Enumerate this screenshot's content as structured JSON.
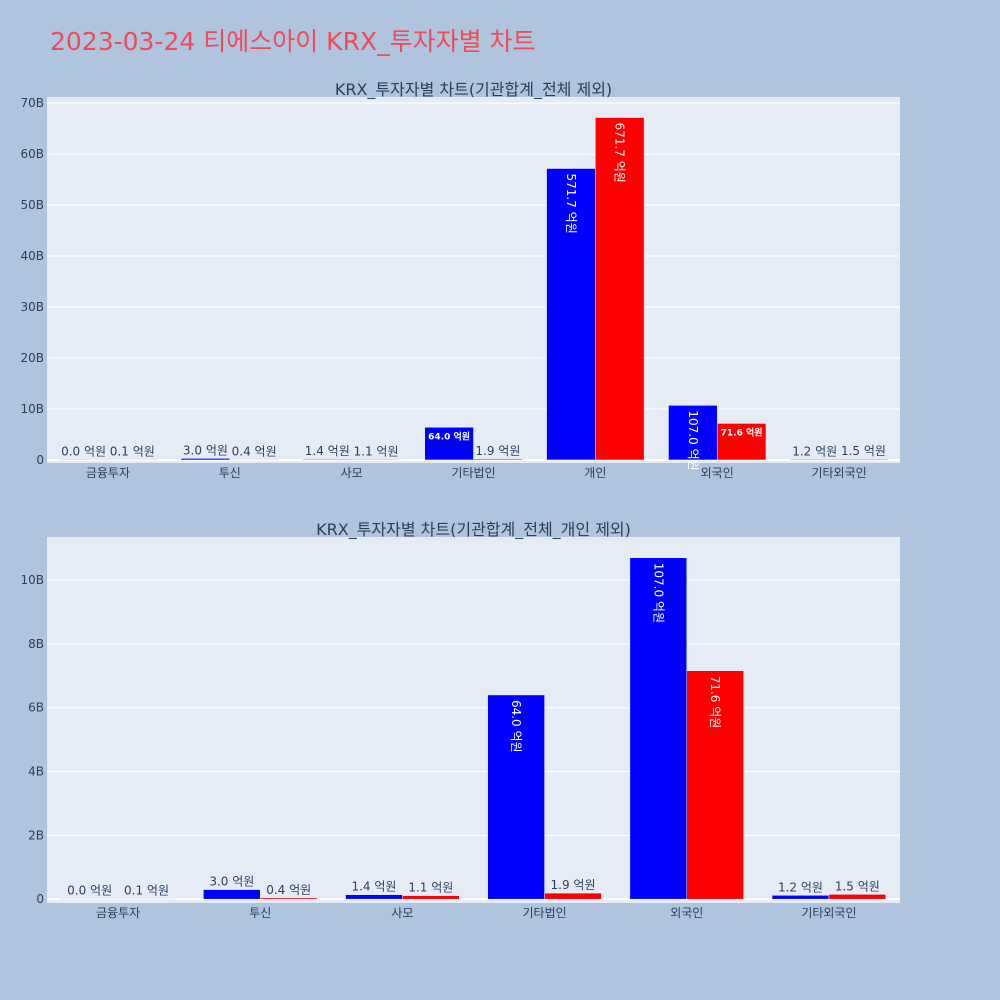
{
  "title": "2023-03-24 티에스아이 KRX_투자자별 차트",
  "colors": {
    "series1": "#0000ff",
    "series2": "#ff0000",
    "plot_bg": "#e5ecf6",
    "page_bg": "#b0c4de",
    "title": "#ef4a5a"
  },
  "chart_data": [
    {
      "type": "bar",
      "title": "KRX_투자자별 차트(기관합계_전체 제외)",
      "categories": [
        "금융투자",
        "투신",
        "사모",
        "기타법인",
        "개인",
        "외국인",
        "기타외국인"
      ],
      "series": [
        {
          "values": [
            0.0,
            3.0,
            1.4,
            64.0,
            571.7,
            107.0,
            1.2
          ],
          "labels": [
            "0.0 억원",
            "3.0 억원",
            "1.4 억원",
            "64.0 억원",
            "571.7 억원",
            "107.0 억원",
            "1.2 억원"
          ]
        },
        {
          "values": [
            0.1,
            0.4,
            1.1,
            1.9,
            671.7,
            71.6,
            1.5
          ],
          "labels": [
            "0.1 억원",
            "0.4 억원",
            "1.1 억원",
            "1.9 억원",
            "671.7 억원",
            "71.6 억원",
            "1.5 억원"
          ]
        }
      ],
      "value_unit": "억원",
      "yticks": [
        "0",
        "10B",
        "20B",
        "30B",
        "40B",
        "50B",
        "60B",
        "70B"
      ],
      "ylim_B": [
        -0.6,
        71.2
      ],
      "grid": true
    },
    {
      "type": "bar",
      "title": "KRX_투자자별 차트(기관합계_전체_개인 제외)",
      "categories": [
        "금융투자",
        "투신",
        "사모",
        "기타법인",
        "외국인",
        "기타외국인"
      ],
      "series": [
        {
          "values": [
            0.0,
            3.0,
            1.4,
            64.0,
            107.0,
            1.2
          ],
          "labels": [
            "0.0 억원",
            "3.0 억원",
            "1.4 억원",
            "64.0 억원",
            "107.0 억원",
            "1.2 억원"
          ]
        },
        {
          "values": [
            0.1,
            0.4,
            1.1,
            1.9,
            71.6,
            1.5
          ],
          "labels": [
            "0.1 억원",
            "0.4 억원",
            "1.1 억원",
            "1.9 억원",
            "71.6 억원",
            "1.5 억원"
          ]
        }
      ],
      "value_unit": "억원",
      "yticks": [
        "0",
        "2B",
        "4B",
        "6B",
        "8B",
        "10B"
      ],
      "ylim_B": [
        -0.12,
        11.35
      ],
      "grid": true
    }
  ]
}
